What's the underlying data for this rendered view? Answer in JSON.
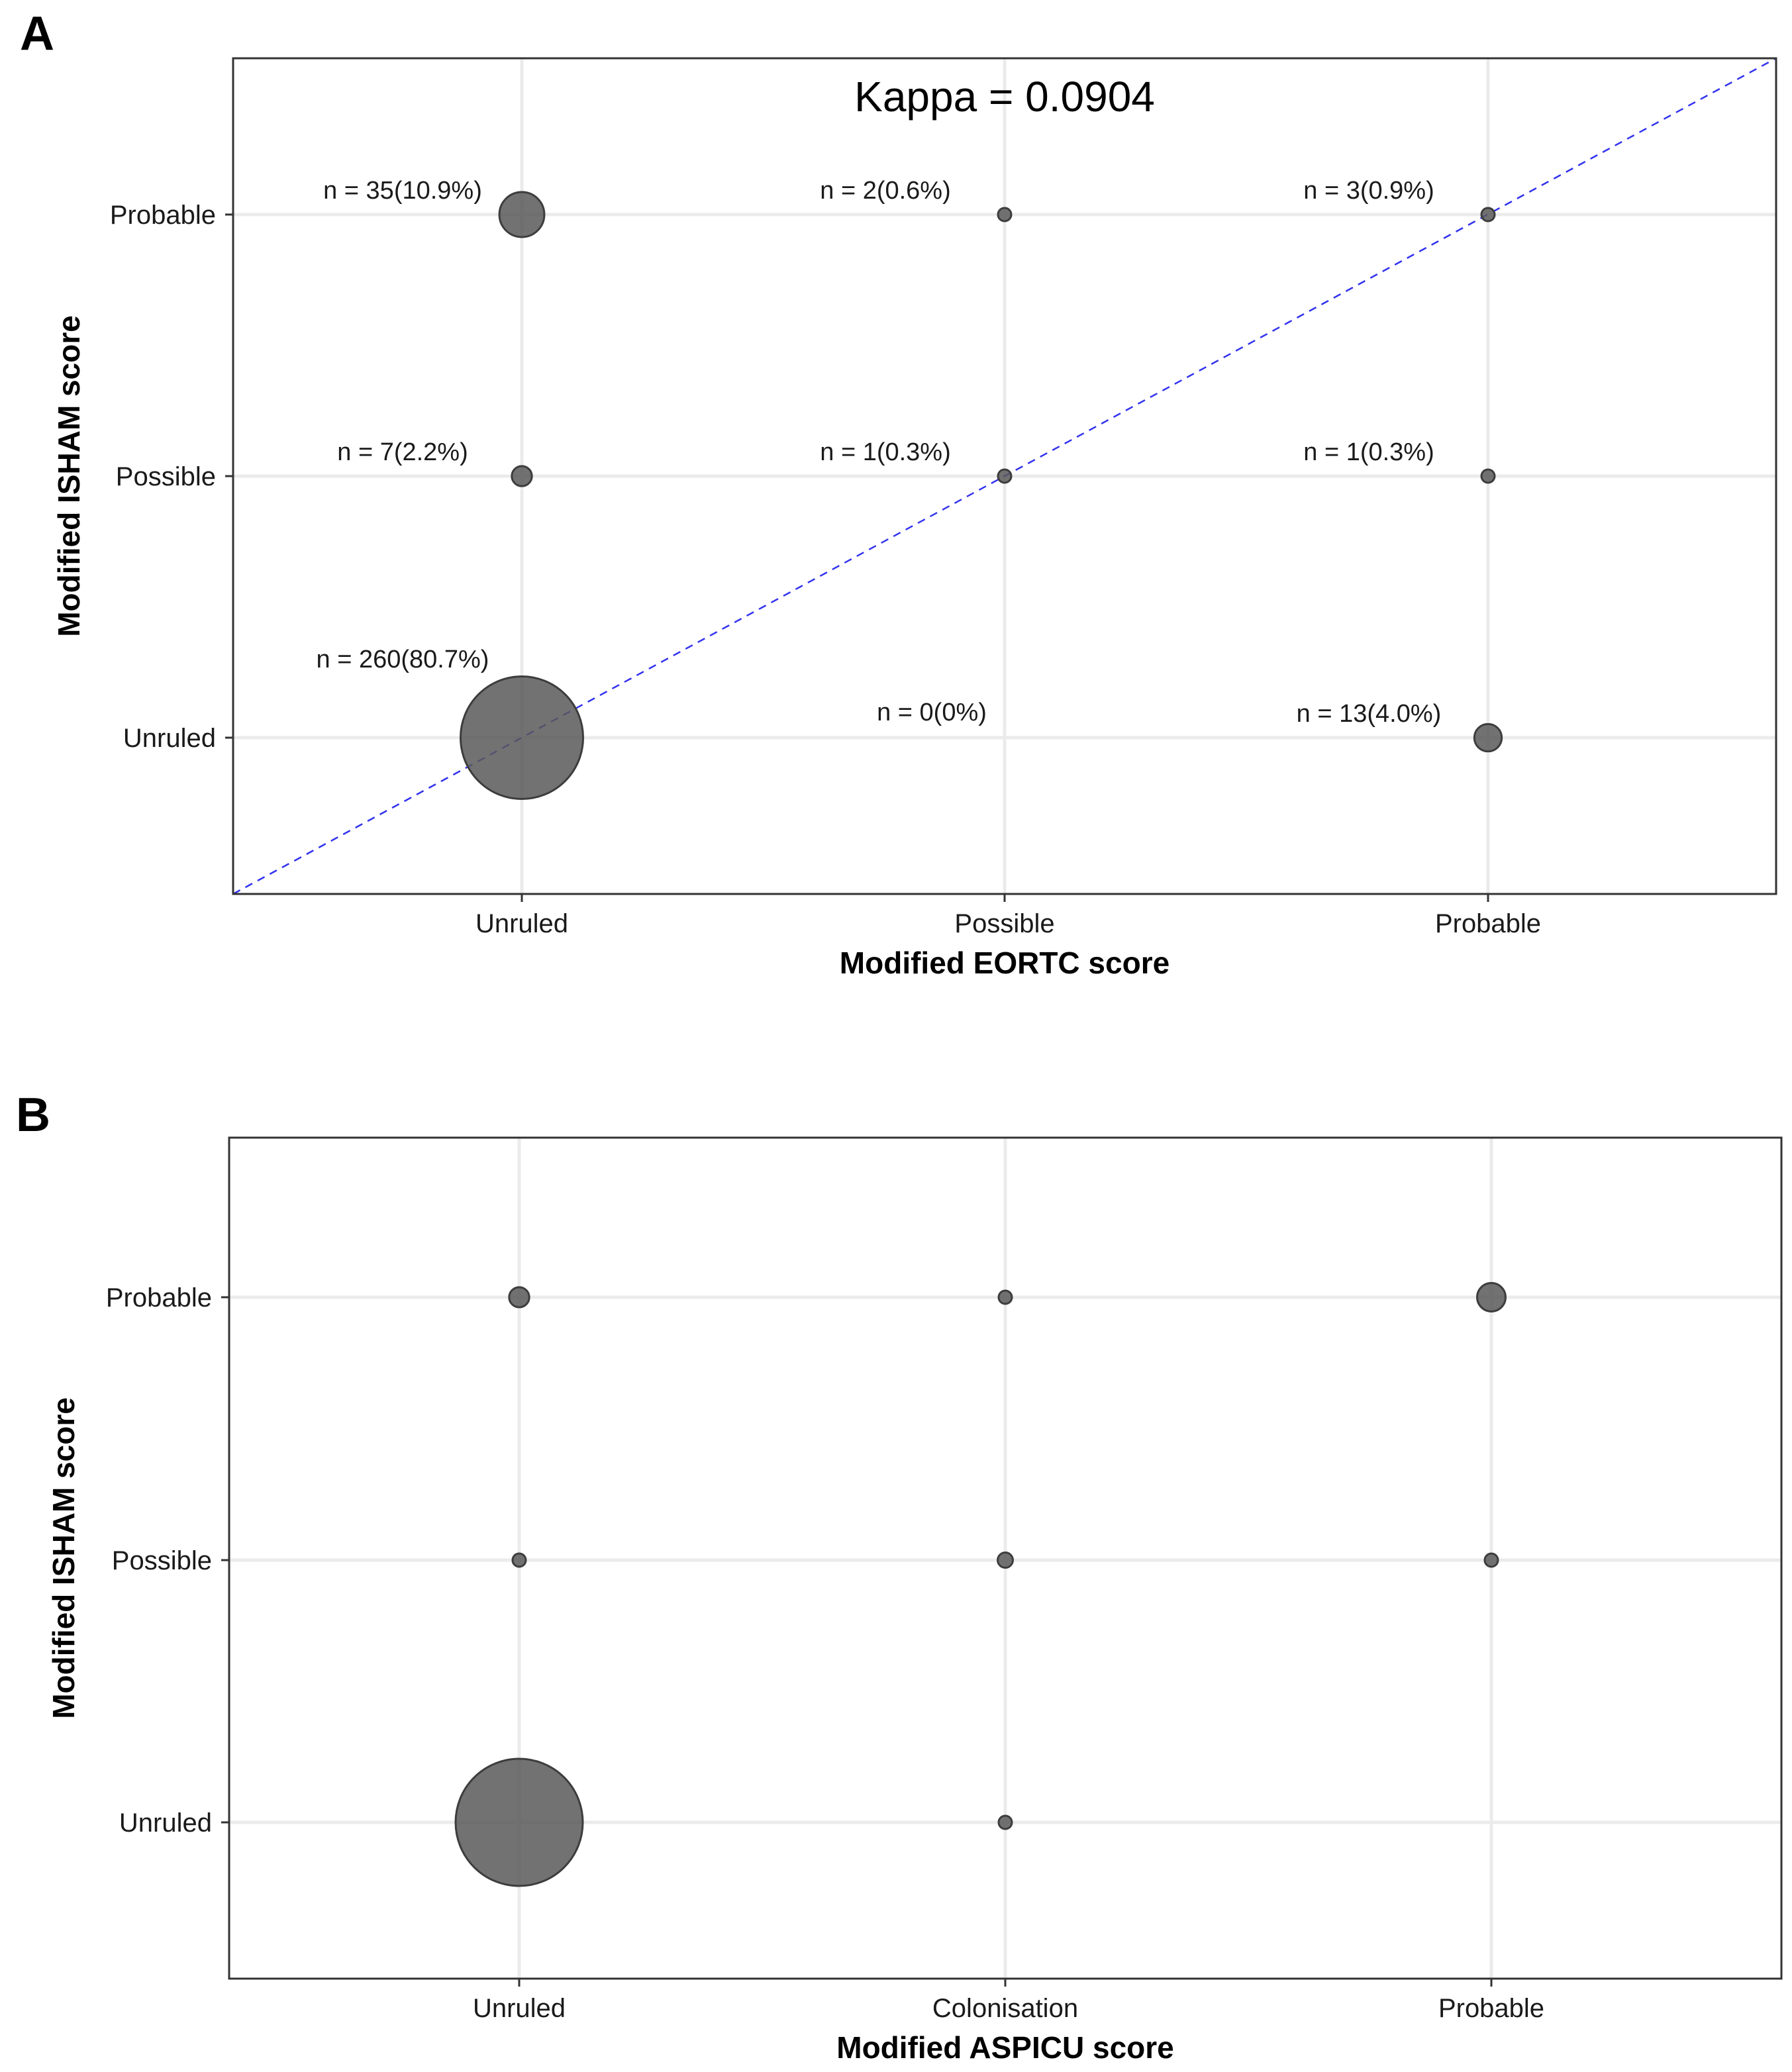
{
  "chart_data": [
    {
      "type": "scatter",
      "panel_label": "A",
      "annotation": "Kappa = 0.0904",
      "xlabel": "Modified EORTC score",
      "ylabel": "Modified ISHAM score",
      "categories_x": [
        "Unruled",
        "Possible",
        "Probable"
      ],
      "categories_y": [
        "Unruled",
        "Possible",
        "Probable"
      ],
      "grid": true,
      "reference_line": "y = x (dashed, blue)",
      "points": [
        {
          "x": "Unruled",
          "y": "Probable",
          "n": 35,
          "label": "n = 35(10.9%)"
        },
        {
          "x": "Possible",
          "y": "Probable",
          "n": 2,
          "label": "n = 2(0.6%)"
        },
        {
          "x": "Probable",
          "y": "Probable",
          "n": 3,
          "label": "n = 3(0.9%)"
        },
        {
          "x": "Unruled",
          "y": "Possible",
          "n": 7,
          "label": "n = 7(2.2%)"
        },
        {
          "x": "Possible",
          "y": "Possible",
          "n": 1,
          "label": "n = 1(0.3%)"
        },
        {
          "x": "Probable",
          "y": "Possible",
          "n": 1,
          "label": "n = 1(0.3%)"
        },
        {
          "x": "Unruled",
          "y": "Unruled",
          "n": 260,
          "label": "n = 260(80.7%)"
        },
        {
          "x": "Possible",
          "y": "Unruled",
          "n": 0,
          "label": "n = 0(0%)"
        },
        {
          "x": "Probable",
          "y": "Unruled",
          "n": 13,
          "label": "n = 13(4.0%)"
        }
      ]
    },
    {
      "type": "scatter",
      "panel_label": "B",
      "xlabel": "Modified ASPICU score",
      "ylabel": "Modified ISHAM score",
      "categories_x": [
        "Unruled",
        "Colonisation",
        "Probable"
      ],
      "categories_y": [
        "Unruled",
        "Possible",
        "Probable"
      ],
      "grid": true,
      "points": [
        {
          "x": "Unruled",
          "y": "Probable",
          "n": 7
        },
        {
          "x": "Colonisation",
          "y": "Probable",
          "n": 1
        },
        {
          "x": "Probable",
          "y": "Probable",
          "n": 14
        },
        {
          "x": "Unruled",
          "y": "Possible",
          "n": 2
        },
        {
          "x": "Colonisation",
          "y": "Possible",
          "n": 4
        },
        {
          "x": "Probable",
          "y": "Possible",
          "n": 1
        },
        {
          "x": "Unruled",
          "y": "Unruled",
          "n": 280
        },
        {
          "x": "Colonisation",
          "y": "Unruled",
          "n": 1
        }
      ]
    }
  ]
}
